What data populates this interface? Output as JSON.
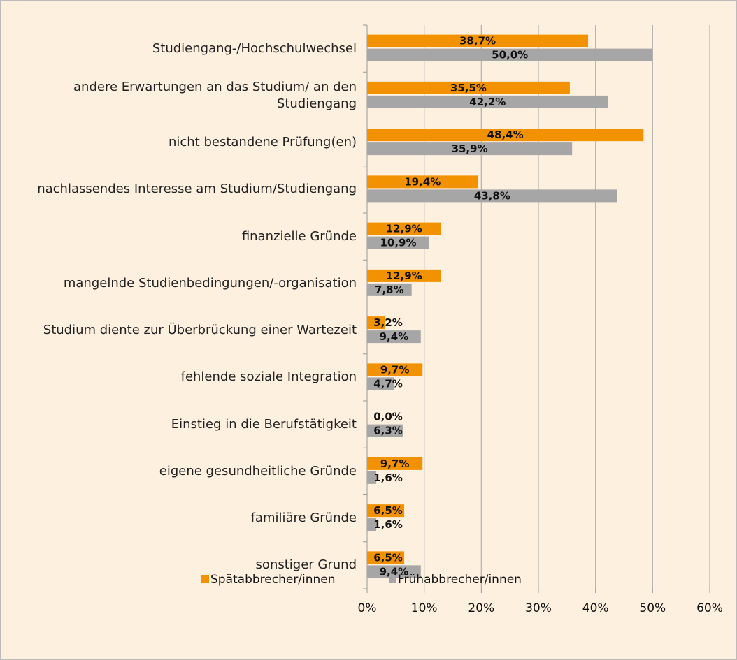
{
  "chart_data": {
    "type": "bar",
    "orientation": "horizontal",
    "categories": [
      "Studiengang-/Hochschulwechsel",
      "andere Erwartungen an das Studium/ an den Studiengang",
      "nicht bestandene Prüfung(en)",
      "nachlassendes Interesse am Studium/Studiengang",
      "finanzielle Gründe",
      "mangelnde Studienbedingungen/-organisation",
      "Studium diente zur Überbrückung einer Wartezeit",
      "fehlende soziale Integration",
      "Einstieg in die Berufstätigkeit",
      "eigene gesundheitliche Gründe",
      "familiäre Gründe",
      "sonstiger Grund"
    ],
    "series": [
      {
        "name": "Spätabbrecher/innen",
        "color": "#f39200",
        "values": [
          38.7,
          35.5,
          48.4,
          19.4,
          12.9,
          12.9,
          3.2,
          9.7,
          0.0,
          9.7,
          6.5,
          6.5
        ],
        "value_labels": [
          "38,7%",
          "35,5%",
          "48,4%",
          "19,4%",
          "12,9%",
          "12,9%",
          "3,2%",
          "9,7%",
          "0,0%",
          "9,7%",
          "6,5%",
          "6,5%"
        ]
      },
      {
        "name": "Frühabbrecher/innen",
        "color": "#a6a6a6",
        "values": [
          50.0,
          42.2,
          35.9,
          43.8,
          10.9,
          7.8,
          9.4,
          4.7,
          6.3,
          1.6,
          1.6,
          9.4
        ],
        "value_labels": [
          "50,0%",
          "42,2%",
          "35,9%",
          "43,8%",
          "10,9%",
          "7,8%",
          "9,4%",
          "4,7%",
          "6,3%",
          "1,6%",
          "1,6%",
          "9,4%"
        ]
      }
    ],
    "xlim": [
      0,
      60
    ],
    "xticks": [
      {
        "value": 0,
        "label": "0%"
      },
      {
        "value": 10,
        "label": "10%"
      },
      {
        "value": 20,
        "label": "20%"
      },
      {
        "value": 30,
        "label": "30%"
      },
      {
        "value": 40,
        "label": "40%"
      },
      {
        "value": 50,
        "label": "50%"
      },
      {
        "value": 60,
        "label": "60%"
      }
    ],
    "grid": true,
    "legend": "bottom"
  }
}
